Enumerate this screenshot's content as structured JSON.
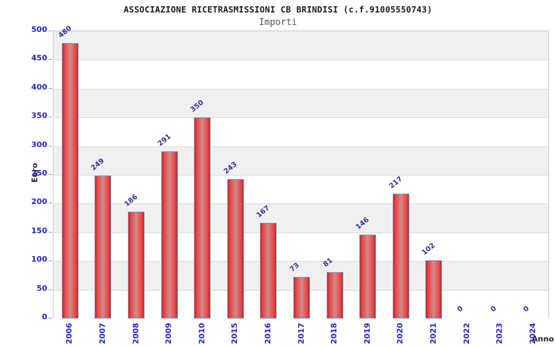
{
  "chart_data": {
    "type": "bar",
    "title": "ASSOCIAZIONE RICETRASMISSIONI CB BRINDISI (c.f.91005550743)",
    "subtitle": "Importi",
    "xlabel": "Anno",
    "ylabel": "Euro",
    "categories": [
      "2006",
      "2007",
      "2008",
      "2009",
      "2010",
      "2015",
      "2016",
      "2017",
      "2018",
      "2019",
      "2020",
      "2021",
      "2022",
      "2023",
      "2024"
    ],
    "values": [
      480,
      249,
      186,
      291,
      350,
      243,
      167,
      73,
      81,
      146,
      217,
      102,
      0,
      0,
      0
    ],
    "ylim": [
      0,
      500
    ],
    "ytick_step": 50,
    "yticks": [
      0,
      50,
      100,
      150,
      200,
      250,
      300,
      350,
      400,
      450,
      500
    ],
    "grid": "alternating horizontal bands, gray on top band",
    "legend": "none",
    "value_label_rotation_deg": -40,
    "x_label_rotation_deg": -90
  },
  "colors": {
    "bar_edge": "#cf1d1d",
    "bar_highlight": "#ea3f3f",
    "bar_center": "#d08a8a",
    "bar_border": "#62a0d8",
    "axis_tick_label": "#2525cc",
    "value_label": "#333399",
    "band_gray": "#f0f0f0",
    "band_white": "#ffffff",
    "gridline": "#dcdcdc",
    "plot_border": "#c9c9c9",
    "title": "#1a1a1a",
    "subtitle": "#555555",
    "axis_title": "#222222"
  }
}
